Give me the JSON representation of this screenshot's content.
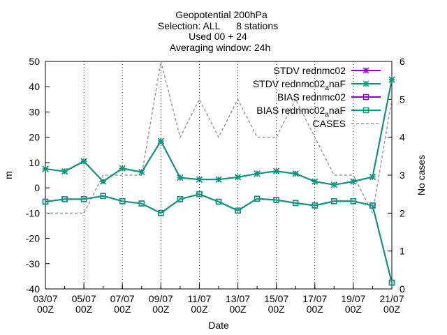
{
  "chart_data": {
    "type": "line",
    "title_lines": [
      "Geopotential 200hPa",
      "Selection: ALL      8 stations",
      "Used 00 + 24",
      "Averaging window: 24h"
    ],
    "xlabel": "Date",
    "ylabel": "m",
    "y2label": "No cases",
    "xlim": [
      0,
      18
    ],
    "ylim": [
      -40,
      50
    ],
    "y2lim": [
      0,
      6
    ],
    "yticks": [
      50,
      40,
      30,
      20,
      10,
      0,
      -10,
      -20,
      -30,
      -40
    ],
    "y2ticks": [
      6,
      5,
      4,
      3,
      2,
      1,
      0
    ],
    "xtick_labels": [
      {
        "pos": 0,
        "date": "03/07",
        "time": "00Z"
      },
      {
        "pos": 2,
        "date": "05/07",
        "time": "00Z"
      },
      {
        "pos": 4,
        "date": "07/07",
        "time": "00Z"
      },
      {
        "pos": 6,
        "date": "09/07",
        "time": "00Z"
      },
      {
        "pos": 8,
        "date": "11/07",
        "time": "00Z"
      },
      {
        "pos": 10,
        "date": "13/07",
        "time": "00Z"
      },
      {
        "pos": 12,
        "date": "15/07",
        "time": "00Z"
      },
      {
        "pos": 14,
        "date": "17/07",
        "time": "00Z"
      },
      {
        "pos": 16,
        "date": "19/07",
        "time": "00Z"
      },
      {
        "pos": 18,
        "date": "21/07",
        "time": "00Z"
      }
    ],
    "x": [
      0,
      1,
      2,
      3,
      4,
      5,
      6,
      7,
      8,
      9,
      10,
      11,
      12,
      13,
      14,
      15,
      16,
      17,
      18
    ],
    "legend_position": "top-right",
    "series": [
      {
        "name": "STDV rednmc02",
        "axis": "left",
        "color": "#9400d3",
        "style": "line",
        "marker": "star",
        "values": [
          7.5,
          6.5,
          10.5,
          2.5,
          7.7,
          6.2,
          18.5,
          4.0,
          3.3,
          3.3,
          4.2,
          5.6,
          6.6,
          5.6,
          2.5,
          1.2,
          2.5,
          4.3,
          42.8
        ]
      },
      {
        "name": "STDV rednmc02_anaF",
        "axis": "left",
        "color": "#009e73",
        "style": "line",
        "marker": "star",
        "values": [
          7.5,
          6.5,
          10.5,
          2.5,
          7.7,
          6.2,
          18.5,
          4.0,
          3.3,
          3.3,
          4.2,
          5.6,
          6.6,
          5.6,
          2.5,
          1.2,
          2.5,
          4.3,
          42.8
        ]
      },
      {
        "name": "BIAS rednmc02",
        "axis": "left",
        "color": "#9400d3",
        "style": "line",
        "marker": "square",
        "values": [
          -5.5,
          -4.5,
          -4.5,
          -3.2,
          -5.3,
          -6.2,
          -10.0,
          -4.5,
          -2.5,
          -5.5,
          -9.0,
          -4.3,
          -4.8,
          -6.0,
          -7.0,
          -5.3,
          -5.3,
          -7.0,
          -37.5
        ]
      },
      {
        "name": "BIAS rednmc02_anaF",
        "axis": "left",
        "color": "#009e73",
        "style": "line",
        "marker": "square",
        "values": [
          -5.5,
          -4.5,
          -4.5,
          -3.2,
          -5.3,
          -6.2,
          -10.0,
          -4.5,
          -2.5,
          -5.5,
          -9.0,
          -4.3,
          -4.8,
          -6.0,
          -7.0,
          -5.3,
          -5.3,
          -7.0,
          -37.5
        ]
      },
      {
        "name": "CASES",
        "axis": "right",
        "color": "#999999",
        "style": "dashed",
        "marker": "none",
        "values": [
          2,
          2,
          2,
          3,
          3,
          3,
          6,
          4,
          5,
          4,
          5,
          4,
          4,
          5,
          4,
          3,
          3,
          2,
          5
        ]
      }
    ]
  }
}
